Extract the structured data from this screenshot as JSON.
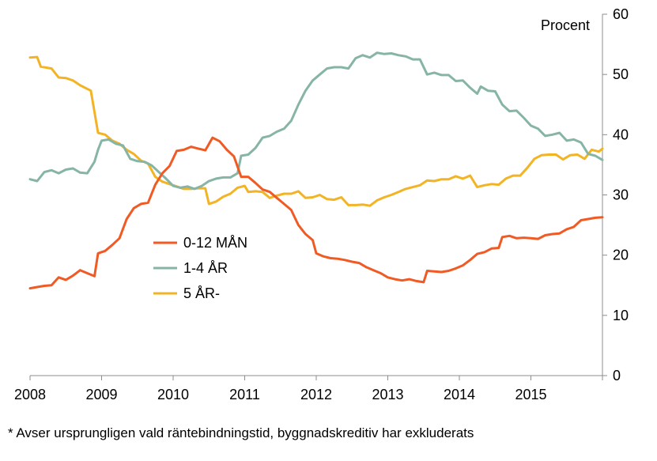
{
  "chart_data": {
    "type": "line",
    "unit_label": "Procent",
    "ylim": [
      0,
      60
    ],
    "y_ticks": [
      0,
      10,
      20,
      30,
      40,
      50,
      60
    ],
    "y_axis_side": "right",
    "xlim": [
      2008.0,
      2016.0
    ],
    "x_ticks": [
      2008,
      2009,
      2010,
      2011,
      2012,
      2013,
      2014,
      2015
    ],
    "grid": false,
    "legend_placement": "center-left",
    "series": [
      {
        "name": "0-12 MÅN",
        "color": "#f05a24",
        "points": [
          [
            2008.0,
            14.5
          ],
          [
            2008.1,
            14.7
          ],
          [
            2008.2,
            14.9
          ],
          [
            2008.3,
            15.0
          ],
          [
            2008.4,
            16.3
          ],
          [
            2008.5,
            15.9
          ],
          [
            2008.6,
            16.6
          ],
          [
            2008.7,
            17.5
          ],
          [
            2008.8,
            17.0
          ],
          [
            2008.9,
            16.5
          ],
          [
            2008.95,
            20.3
          ],
          [
            2009.05,
            20.7
          ],
          [
            2009.15,
            21.7
          ],
          [
            2009.25,
            22.8
          ],
          [
            2009.35,
            26.0
          ],
          [
            2009.45,
            27.8
          ],
          [
            2009.55,
            28.5
          ],
          [
            2009.65,
            28.7
          ],
          [
            2009.75,
            31.7
          ],
          [
            2009.85,
            33.6
          ],
          [
            2009.95,
            34.8
          ],
          [
            2010.05,
            37.3
          ],
          [
            2010.15,
            37.5
          ],
          [
            2010.25,
            38.0
          ],
          [
            2010.35,
            37.7
          ],
          [
            2010.45,
            37.4
          ],
          [
            2010.55,
            39.5
          ],
          [
            2010.65,
            38.9
          ],
          [
            2010.75,
            37.5
          ],
          [
            2010.85,
            36.4
          ],
          [
            2010.95,
            33.0
          ],
          [
            2011.05,
            33.0
          ],
          [
            2011.15,
            32.0
          ],
          [
            2011.25,
            30.9
          ],
          [
            2011.35,
            30.5
          ],
          [
            2011.45,
            29.5
          ],
          [
            2011.55,
            28.5
          ],
          [
            2011.65,
            27.5
          ],
          [
            2011.75,
            25.0
          ],
          [
            2011.85,
            23.5
          ],
          [
            2011.95,
            22.5
          ],
          [
            2012.0,
            20.3
          ],
          [
            2012.1,
            19.8
          ],
          [
            2012.2,
            19.5
          ],
          [
            2012.3,
            19.4
          ],
          [
            2012.4,
            19.2
          ],
          [
            2012.5,
            18.9
          ],
          [
            2012.6,
            18.7
          ],
          [
            2012.7,
            18.0
          ],
          [
            2012.8,
            17.5
          ],
          [
            2012.9,
            17.0
          ],
          [
            2013.0,
            16.3
          ],
          [
            2013.1,
            16.0
          ],
          [
            2013.2,
            15.8
          ],
          [
            2013.3,
            16.0
          ],
          [
            2013.4,
            15.7
          ],
          [
            2013.5,
            15.5
          ],
          [
            2013.55,
            17.4
          ],
          [
            2013.65,
            17.3
          ],
          [
            2013.75,
            17.2
          ],
          [
            2013.85,
            17.4
          ],
          [
            2013.95,
            17.8
          ],
          [
            2014.05,
            18.3
          ],
          [
            2014.15,
            19.2
          ],
          [
            2014.25,
            20.2
          ],
          [
            2014.35,
            20.5
          ],
          [
            2014.45,
            21.1
          ],
          [
            2014.55,
            21.2
          ],
          [
            2014.6,
            23.0
          ],
          [
            2014.7,
            23.2
          ],
          [
            2014.8,
            22.8
          ],
          [
            2014.9,
            22.9
          ],
          [
            2015.0,
            22.8
          ],
          [
            2015.1,
            22.7
          ],
          [
            2015.2,
            23.3
          ],
          [
            2015.3,
            23.5
          ],
          [
            2015.4,
            23.6
          ],
          [
            2015.5,
            24.3
          ],
          [
            2015.6,
            24.7
          ],
          [
            2015.7,
            25.8
          ],
          [
            2015.8,
            26.0
          ],
          [
            2015.9,
            26.2
          ],
          [
            2016.0,
            26.3
          ]
        ]
      },
      {
        "name": "1-4 ÅR",
        "color": "#86b5a6",
        "points": [
          [
            2008.0,
            32.6
          ],
          [
            2008.1,
            32.3
          ],
          [
            2008.2,
            33.8
          ],
          [
            2008.3,
            34.1
          ],
          [
            2008.4,
            33.6
          ],
          [
            2008.5,
            34.2
          ],
          [
            2008.6,
            34.4
          ],
          [
            2008.7,
            33.7
          ],
          [
            2008.8,
            33.6
          ],
          [
            2008.9,
            35.5
          ],
          [
            2008.95,
            37.5
          ],
          [
            2009.0,
            39.0
          ],
          [
            2009.1,
            39.2
          ],
          [
            2009.2,
            38.5
          ],
          [
            2009.3,
            38.2
          ],
          [
            2009.4,
            36.0
          ],
          [
            2009.5,
            35.6
          ],
          [
            2009.6,
            35.5
          ],
          [
            2009.7,
            34.9
          ],
          [
            2009.8,
            33.8
          ],
          [
            2009.9,
            32.7
          ],
          [
            2010.0,
            31.5
          ],
          [
            2010.1,
            31.2
          ],
          [
            2010.2,
            31.4
          ],
          [
            2010.3,
            31.0
          ],
          [
            2010.4,
            31.5
          ],
          [
            2010.5,
            32.3
          ],
          [
            2010.6,
            32.7
          ],
          [
            2010.7,
            32.9
          ],
          [
            2010.8,
            32.9
          ],
          [
            2010.9,
            33.6
          ],
          [
            2010.95,
            36.5
          ],
          [
            2011.05,
            36.7
          ],
          [
            2011.15,
            37.8
          ],
          [
            2011.25,
            39.5
          ],
          [
            2011.35,
            39.8
          ],
          [
            2011.45,
            40.5
          ],
          [
            2011.55,
            41.0
          ],
          [
            2011.65,
            42.3
          ],
          [
            2011.75,
            45.0
          ],
          [
            2011.85,
            47.3
          ],
          [
            2011.95,
            49.0
          ],
          [
            2012.05,
            50.0
          ],
          [
            2012.15,
            51.0
          ],
          [
            2012.25,
            51.2
          ],
          [
            2012.35,
            51.2
          ],
          [
            2012.45,
            51.0
          ],
          [
            2012.55,
            52.7
          ],
          [
            2012.65,
            53.2
          ],
          [
            2012.75,
            52.8
          ],
          [
            2012.85,
            53.6
          ],
          [
            2012.95,
            53.4
          ],
          [
            2013.05,
            53.5
          ],
          [
            2013.15,
            53.2
          ],
          [
            2013.25,
            53.0
          ],
          [
            2013.35,
            52.5
          ],
          [
            2013.45,
            52.5
          ],
          [
            2013.55,
            50.0
          ],
          [
            2013.65,
            50.3
          ],
          [
            2013.75,
            49.9
          ],
          [
            2013.85,
            49.9
          ],
          [
            2013.95,
            48.9
          ],
          [
            2014.05,
            49.0
          ],
          [
            2014.15,
            47.8
          ],
          [
            2014.25,
            46.8
          ],
          [
            2014.3,
            48.0
          ],
          [
            2014.4,
            47.3
          ],
          [
            2014.5,
            47.2
          ],
          [
            2014.6,
            45.0
          ],
          [
            2014.7,
            43.9
          ],
          [
            2014.8,
            44.0
          ],
          [
            2014.9,
            42.8
          ],
          [
            2015.0,
            41.5
          ],
          [
            2015.1,
            41.0
          ],
          [
            2015.2,
            39.8
          ],
          [
            2015.3,
            40.0
          ],
          [
            2015.4,
            40.3
          ],
          [
            2015.5,
            39.0
          ],
          [
            2015.6,
            39.2
          ],
          [
            2015.7,
            38.7
          ],
          [
            2015.8,
            36.8
          ],
          [
            2015.9,
            36.5
          ],
          [
            2016.0,
            35.8
          ]
        ]
      },
      {
        "name": "5 ÅR-",
        "color": "#f2b424",
        "points": [
          [
            2008.0,
            52.8
          ],
          [
            2008.1,
            52.9
          ],
          [
            2008.15,
            51.3
          ],
          [
            2008.3,
            51.0
          ],
          [
            2008.4,
            49.5
          ],
          [
            2008.5,
            49.4
          ],
          [
            2008.6,
            49.0
          ],
          [
            2008.7,
            48.2
          ],
          [
            2008.85,
            47.3
          ],
          [
            2008.95,
            40.3
          ],
          [
            2009.05,
            40.0
          ],
          [
            2009.15,
            39.0
          ],
          [
            2009.25,
            38.5
          ],
          [
            2009.35,
            37.5
          ],
          [
            2009.45,
            36.8
          ],
          [
            2009.55,
            35.7
          ],
          [
            2009.65,
            35.2
          ],
          [
            2009.75,
            33.0
          ],
          [
            2009.85,
            32.2
          ],
          [
            2009.95,
            31.8
          ],
          [
            2010.05,
            31.4
          ],
          [
            2010.15,
            31.0
          ],
          [
            2010.25,
            31.0
          ],
          [
            2010.35,
            31.1
          ],
          [
            2010.45,
            31.1
          ],
          [
            2010.5,
            28.5
          ],
          [
            2010.6,
            28.9
          ],
          [
            2010.7,
            29.7
          ],
          [
            2010.8,
            30.2
          ],
          [
            2010.9,
            31.2
          ],
          [
            2011.0,
            31.5
          ],
          [
            2011.05,
            30.5
          ],
          [
            2011.15,
            30.6
          ],
          [
            2011.25,
            30.5
          ],
          [
            2011.35,
            29.5
          ],
          [
            2011.45,
            29.9
          ],
          [
            2011.55,
            30.2
          ],
          [
            2011.65,
            30.2
          ],
          [
            2011.75,
            30.6
          ],
          [
            2011.85,
            29.5
          ],
          [
            2011.95,
            29.6
          ],
          [
            2012.05,
            30.0
          ],
          [
            2012.15,
            29.3
          ],
          [
            2012.25,
            29.2
          ],
          [
            2012.35,
            29.6
          ],
          [
            2012.45,
            28.3
          ],
          [
            2012.55,
            28.3
          ],
          [
            2012.65,
            28.4
          ],
          [
            2012.75,
            28.2
          ],
          [
            2012.85,
            29.1
          ],
          [
            2012.95,
            29.6
          ],
          [
            2013.05,
            30.0
          ],
          [
            2013.15,
            30.5
          ],
          [
            2013.25,
            31.0
          ],
          [
            2013.35,
            31.3
          ],
          [
            2013.45,
            31.6
          ],
          [
            2013.55,
            32.4
          ],
          [
            2013.65,
            32.3
          ],
          [
            2013.75,
            32.6
          ],
          [
            2013.85,
            32.6
          ],
          [
            2013.95,
            33.1
          ],
          [
            2014.05,
            32.7
          ],
          [
            2014.15,
            33.2
          ],
          [
            2014.25,
            31.3
          ],
          [
            2014.35,
            31.6
          ],
          [
            2014.45,
            31.8
          ],
          [
            2014.55,
            31.7
          ],
          [
            2014.65,
            32.7
          ],
          [
            2014.75,
            33.2
          ],
          [
            2014.85,
            33.2
          ],
          [
            2014.95,
            34.5
          ],
          [
            2015.05,
            36.0
          ],
          [
            2015.15,
            36.6
          ],
          [
            2015.25,
            36.7
          ],
          [
            2015.35,
            36.7
          ],
          [
            2015.45,
            35.9
          ],
          [
            2015.55,
            36.6
          ],
          [
            2015.65,
            36.7
          ],
          [
            2015.75,
            36.0
          ],
          [
            2015.85,
            37.5
          ],
          [
            2015.95,
            37.2
          ],
          [
            2016.0,
            37.7
          ]
        ]
      }
    ]
  },
  "footnote": "* Avser ursprungligen vald räntebindningstid, byggnadskreditiv har exkluderats"
}
